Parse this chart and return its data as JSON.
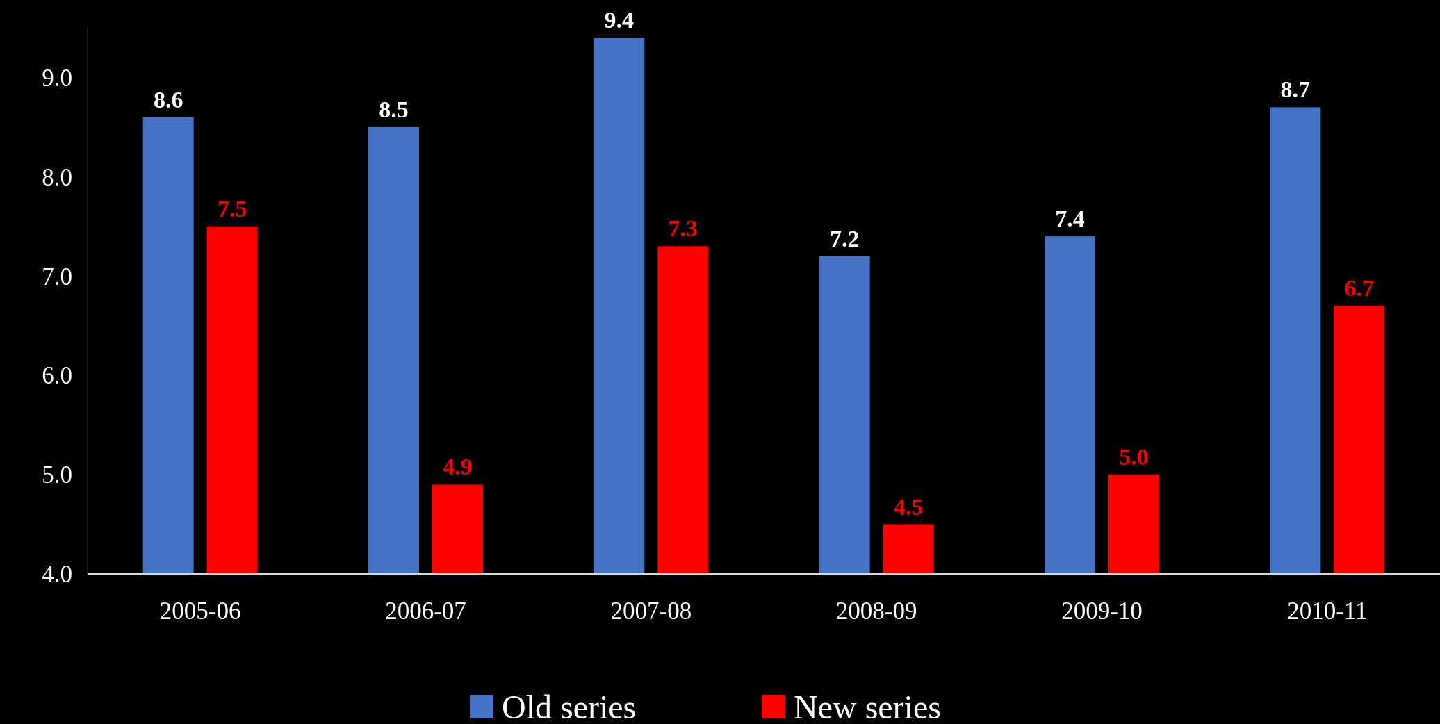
{
  "chart_data": {
    "type": "bar",
    "categories": [
      "2005-06",
      "2006-07",
      "2007-08",
      "2008-09",
      "2009-10",
      "2010-11"
    ],
    "series": [
      {
        "name": "Old series",
        "color": "#4472c4",
        "values": [
          8.6,
          8.5,
          9.4,
          7.2,
          7.4,
          8.7
        ],
        "value_labels": [
          "8.6",
          "8.5",
          "9.4",
          "7.2",
          "7.4",
          "8.7"
        ]
      },
      {
        "name": "New series",
        "color": "#ff0000",
        "values": [
          7.5,
          4.9,
          7.3,
          4.5,
          5.0,
          6.7
        ],
        "value_labels": [
          "7.5",
          "4.9",
          "7.3",
          "4.5",
          "5.0",
          "6.7"
        ]
      }
    ],
    "ylim": [
      4,
      9.5
    ],
    "yticks": [
      {
        "value": 4,
        "label": "4.0"
      },
      {
        "value": 5,
        "label": "5.0"
      },
      {
        "value": 6,
        "label": "6.0"
      },
      {
        "value": 7,
        "label": "7.0"
      },
      {
        "value": 8,
        "label": "8.0"
      },
      {
        "value": 9,
        "label": "9.0"
      }
    ],
    "legend": "bottom",
    "grid": false
  }
}
